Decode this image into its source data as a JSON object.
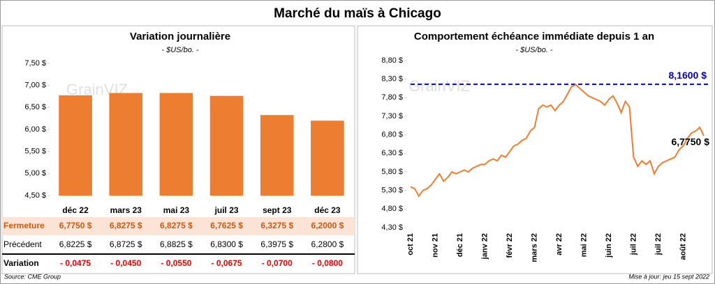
{
  "title": "Marché du maïs à Chicago",
  "watermark": "GrainVIZ",
  "chart_data": [
    {
      "type": "bar",
      "title": "Variation journalière",
      "subtitle": "- $US/bo. -",
      "categories": [
        "déc 22",
        "mars 23",
        "mai 23",
        "juil 23",
        "sept 23",
        "déc 23"
      ],
      "values": [
        6.775,
        6.8275,
        6.8275,
        6.7625,
        6.3275,
        6.2
      ],
      "color": "#ed7d31",
      "ylim": [
        4.5,
        7.5
      ],
      "yticks": [
        {
          "value": 4.5,
          "label": "4,50 $"
        },
        {
          "value": 5,
          "label": "5,00 $"
        },
        {
          "value": 5.5,
          "label": "5,50 $"
        },
        {
          "value": 6,
          "label": "6,00 $"
        },
        {
          "value": 6.5,
          "label": "6,50 $"
        },
        {
          "value": 7,
          "label": "7,00 $"
        },
        {
          "value": 7.5,
          "label": "7,50 $"
        }
      ]
    },
    {
      "type": "line",
      "title": "Comportement échéance immédiate depuis 1 an",
      "subtitle": "- $US/bo. -",
      "categories": [
        "oct 21",
        null,
        null,
        null,
        null,
        null,
        "nov 21",
        null,
        null,
        null,
        null,
        null,
        "déc 21",
        null,
        null,
        null,
        null,
        null,
        "janv 22",
        null,
        null,
        null,
        null,
        null,
        "févr 22",
        null,
        null,
        null,
        null,
        null,
        "mars 22",
        null,
        null,
        null,
        null,
        null,
        "avr 22",
        null,
        null,
        null,
        null,
        null,
        "mai 22",
        null,
        null,
        null,
        null,
        null,
        "juin 22",
        null,
        null,
        null,
        null,
        null,
        "juil 22",
        null,
        null,
        null,
        null,
        null,
        "juil 22",
        null,
        null,
        null,
        null,
        null,
        "août 22",
        null,
        null,
        null,
        null,
        null
      ],
      "series": [
        {
          "name": "Maïs",
          "color": "#ed7d31",
          "values": [
            5.4,
            5.35,
            5.15,
            5.3,
            5.35,
            5.45,
            5.6,
            5.75,
            5.55,
            5.65,
            5.8,
            5.75,
            5.8,
            5.85,
            5.8,
            5.9,
            5.95,
            6.0,
            6.0,
            6.1,
            6.15,
            6.1,
            6.25,
            6.2,
            6.35,
            6.5,
            6.55,
            6.65,
            6.7,
            6.9,
            7.0,
            7.5,
            7.6,
            7.55,
            7.6,
            7.45,
            7.6,
            7.7,
            7.9,
            8.1,
            8.15,
            8.05,
            7.95,
            7.85,
            7.8,
            7.75,
            7.7,
            7.6,
            7.75,
            7.85,
            7.65,
            7.4,
            7.7,
            7.55,
            6.2,
            5.95,
            6.1,
            6.0,
            6.1,
            5.75,
            5.95,
            6.05,
            6.1,
            6.15,
            6.2,
            6.4,
            6.5,
            6.7,
            6.85,
            6.9,
            7.0,
            6.775
          ]
        }
      ],
      "end_label": "6,7750 $",
      "reference_line": {
        "value": 8.16,
        "label": "8,1600 $",
        "color": "#0000b0"
      },
      "ylim": [
        4.3,
        8.8
      ],
      "yticks": [
        {
          "value": 4.3,
          "label": "4,30 $"
        },
        {
          "value": 4.8,
          "label": "4,80 $"
        },
        {
          "value": 5.3,
          "label": "5,30 $"
        },
        {
          "value": 5.8,
          "label": "5,80 $"
        },
        {
          "value": 6.3,
          "label": "6,30 $"
        },
        {
          "value": 6.8,
          "label": "6,80 $"
        },
        {
          "value": 7.3,
          "label": "7,30 $"
        },
        {
          "value": 7.8,
          "label": "7,80 $"
        },
        {
          "value": 8.3,
          "label": "8,30 $"
        },
        {
          "value": 8.8,
          "label": "8,80 $"
        }
      ]
    }
  ],
  "table": {
    "rows": [
      {
        "label": "Fermeture",
        "cells": [
          "6,7750  $",
          "6,8275  $",
          "6,8275  $",
          "6,7625  $",
          "6,3275  $",
          "6,2000  $"
        ]
      },
      {
        "label": "Précédent",
        "cells": [
          "6,8225  $",
          "6,8725  $",
          "6,8825  $",
          "6,8300  $",
          "6,3975  $",
          "6,2800  $"
        ]
      },
      {
        "label": "Variation",
        "cells": [
          "- 0,0475",
          "- 0,0450",
          "- 0,0550",
          "- 0,0675",
          "- 0,0700",
          "- 0,0800"
        ]
      }
    ]
  },
  "source": "Source: CME Group",
  "updated": "Mise à jour: jeu 15 sept 2022"
}
